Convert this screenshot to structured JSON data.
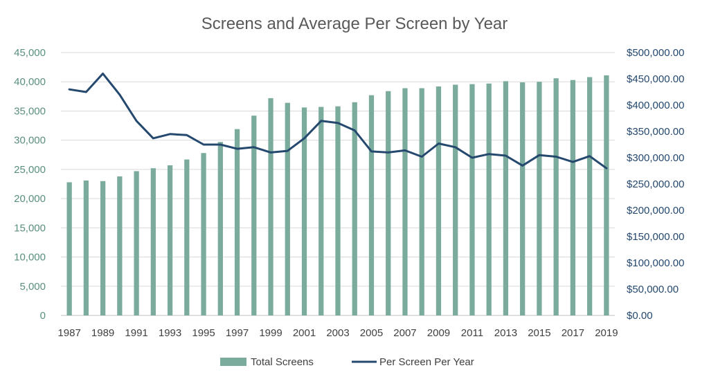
{
  "chart_data": {
    "type": "bar+line",
    "title": "Screens and Average Per Screen by Year",
    "xlabel": "",
    "ylabel": "",
    "y2label": "",
    "categories": [
      1987,
      1988,
      1989,
      1990,
      1991,
      1992,
      1993,
      1994,
      1995,
      1996,
      1997,
      1998,
      1999,
      2000,
      2001,
      2002,
      2003,
      2004,
      2005,
      2006,
      2007,
      2008,
      2009,
      2010,
      2011,
      2012,
      2013,
      2014,
      2015,
      2016,
      2017,
      2018,
      2019
    ],
    "x_tick_labels": [
      "1987",
      "1989",
      "1991",
      "1993",
      "1995",
      "1997",
      "1999",
      "2001",
      "2003",
      "2005",
      "2007",
      "2009",
      "2011",
      "2013",
      "2015",
      "2017",
      "2019"
    ],
    "ylim": [
      0,
      45000
    ],
    "y_ticks": [
      0,
      5000,
      10000,
      15000,
      20000,
      25000,
      30000,
      35000,
      40000,
      45000
    ],
    "y_tick_labels": [
      "0",
      "5,000",
      "10,000",
      "15,000",
      "20,000",
      "25,000",
      "30,000",
      "35,000",
      "40,000",
      "45,000"
    ],
    "y2lim": [
      0,
      500000
    ],
    "y2_ticks": [
      0,
      50000,
      100000,
      150000,
      200000,
      250000,
      300000,
      350000,
      400000,
      450000,
      500000
    ],
    "y2_tick_labels": [
      "$0.00",
      "$50,000.00",
      "$100,000.00",
      "$150,000.00",
      "$200,000.00",
      "$250,000.00",
      "$300,000.00",
      "$350,000.00",
      "$400,000.00",
      "$450,000.00",
      "$500,000.00"
    ],
    "grid": true,
    "legend_position": "bottom",
    "series": [
      {
        "name": "Total Screens",
        "kind": "bar",
        "axis": "left",
        "color": "#7aab9c",
        "values": [
          22800,
          23100,
          23000,
          23800,
          24700,
          25200,
          25700,
          26700,
          27800,
          29700,
          31900,
          34200,
          37200,
          36400,
          35600,
          35700,
          35800,
          36500,
          37700,
          38400,
          38900,
          38900,
          39200,
          39500,
          39600,
          39700,
          40100,
          39900,
          40000,
          40600,
          40300,
          40800,
          41100
        ]
      },
      {
        "name": "Per Screen Per Year",
        "kind": "line",
        "axis": "right",
        "color": "#24486e",
        "values": [
          430000,
          425000,
          460000,
          420000,
          370000,
          337000,
          345000,
          343000,
          325000,
          325000,
          317000,
          320000,
          310000,
          313000,
          337000,
          370000,
          366000,
          352000,
          312000,
          310000,
          314000,
          302000,
          327000,
          320000,
          300000,
          307000,
          304000,
          285000,
          305000,
          302000,
          292000,
          303000,
          280000
        ]
      }
    ]
  }
}
